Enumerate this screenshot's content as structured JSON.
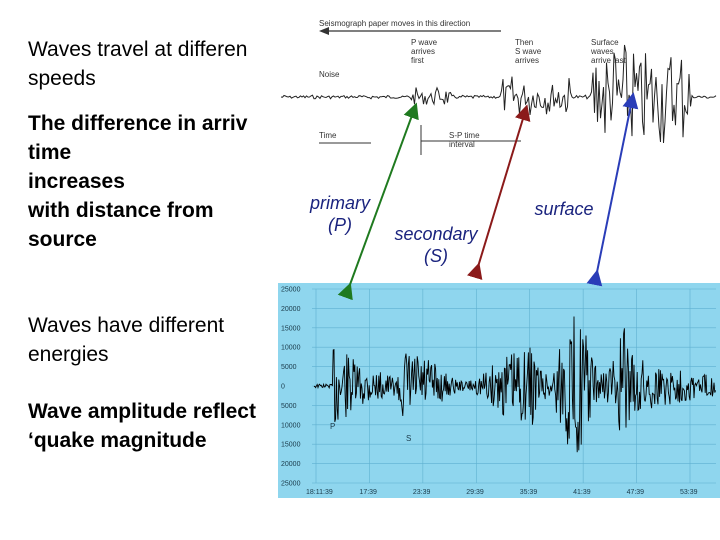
{
  "slide": {
    "text_blocks": [
      {
        "lines": [
          "Waves travel at differen",
          "speeds"
        ],
        "bold": false
      },
      {
        "lines": [
          "The difference in arriv",
          "time",
          "increases",
          "with distance from",
          "source"
        ],
        "bold": true
      },
      {
        "lines": [
          "Waves have different",
          "energies"
        ],
        "bold": false
      },
      {
        "lines": [
          "Wave amplitude reflect",
          "‘quake magnitude"
        ],
        "bold": true
      }
    ],
    "wave_labels": {
      "primary": [
        "primary",
        "(P)"
      ],
      "secondary": [
        "secondary",
        "(S)"
      ],
      "surface": [
        "surface"
      ]
    }
  },
  "paper_diagram": {
    "direction_caption": "Seismograph paper moves in this direction",
    "noise_label": "Noise",
    "time_label": "Time",
    "p_label": [
      "P wave",
      "arrives",
      "first"
    ],
    "s_label": [
      "Then",
      "S wave",
      "arrives"
    ],
    "surface_label": [
      "Surface",
      "waves",
      "arrive last"
    ],
    "sp_label": [
      "S-P time",
      "interval"
    ]
  },
  "seismogram": {
    "y_ticks": [
      "25000",
      "20000",
      "15000",
      "10000",
      "5000",
      "0",
      "5000",
      "10000",
      "15000",
      "20000",
      "25000"
    ],
    "x_ticks": [
      "18:11:39",
      "17:39",
      "23:39",
      "29:39",
      "35:39",
      "41:39",
      "47:39",
      "53:39"
    ],
    "p_marker": "P",
    "s_marker": "S",
    "colors": {
      "background": "#8fd6ee",
      "grid": "#5fb0d0",
      "trace": "#000000"
    }
  },
  "arrow_colors": {
    "primary": "#1f7a1f",
    "secondary": "#8b1a1a",
    "surface": "#2a3db8"
  }
}
